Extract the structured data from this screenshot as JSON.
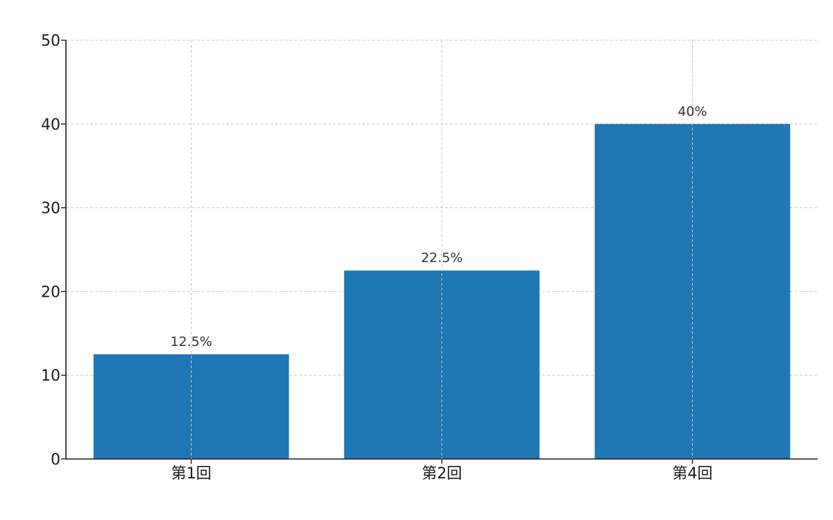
{
  "chart_data": {
    "type": "bar",
    "title": "",
    "xlabel": "",
    "ylabel": "",
    "categories": [
      "第1回",
      "第2回",
      "第4回"
    ],
    "values": [
      12.5,
      22.5,
      40
    ],
    "data_labels": [
      "12.5%",
      "22.5%",
      "40%"
    ],
    "ylim": [
      0,
      50
    ],
    "yticks": [
      0,
      10,
      20,
      30,
      40,
      50
    ],
    "grid": true,
    "bar_color": "#1f77b4"
  }
}
